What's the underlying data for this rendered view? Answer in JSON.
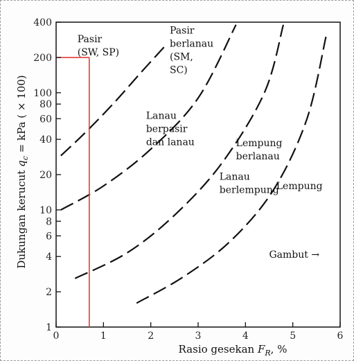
{
  "chart_data": {
    "type": "line",
    "xlabel": "Rasio gesekan F_R, %",
    "xlabel_main": "Rasio gesekan ",
    "xlabel_symbol": "F",
    "xlabel_sub": "R",
    "xlabel_tail": ", %",
    "ylabel": "Dukungan kerucut q_c = kPa ( × 100)",
    "ylabel_main": "Dukungan kerucut ",
    "ylabel_symbol": "q",
    "ylabel_sub": "c",
    "ylabel_tail": " = kPa ( × 100)",
    "xlim": [
      0,
      6
    ],
    "ylim": [
      1,
      400
    ],
    "yscale": "log",
    "grid": false,
    "x_ticks": [
      {
        "value": 0,
        "label": "0"
      },
      {
        "value": 1,
        "label": "1"
      },
      {
        "value": 2,
        "label": "2"
      },
      {
        "value": 3,
        "label": "3"
      },
      {
        "value": 4,
        "label": "4"
      },
      {
        "value": 5,
        "label": "5"
      },
      {
        "value": 6,
        "label": "6"
      }
    ],
    "y_ticks": [
      {
        "value": 1,
        "label": "1"
      },
      {
        "value": 2,
        "label": "2"
      },
      {
        "value": 4,
        "label": "4"
      },
      {
        "value": 6,
        "label": "6"
      },
      {
        "value": 8,
        "label": "8"
      },
      {
        "value": 10,
        "label": "10"
      },
      {
        "value": 20,
        "label": "20"
      },
      {
        "value": 40,
        "label": "40"
      },
      {
        "value": 60,
        "label": "60"
      },
      {
        "value": 80,
        "label": "80"
      },
      {
        "value": 100,
        "label": "100"
      },
      {
        "value": 200,
        "label": "200"
      },
      {
        "value": 400,
        "label": "400"
      }
    ],
    "series": [
      {
        "style": "dashed",
        "color": "#111111",
        "x": [
          0.1,
          0.6,
          1.2,
          1.8,
          2.3
        ],
        "y": [
          29,
          45,
          80,
          150,
          250
        ]
      },
      {
        "style": "dashed",
        "color": "#111111",
        "x": [
          0.1,
          1.0,
          2.0,
          3.0,
          3.8
        ],
        "y": [
          10,
          16,
          33,
          90,
          380
        ]
      },
      {
        "style": "dashed",
        "color": "#111111",
        "x": [
          0.4,
          1.5,
          2.5,
          3.5,
          4.4,
          4.8
        ],
        "y": [
          2.6,
          4.3,
          9,
          25,
          100,
          380
        ]
      },
      {
        "style": "dashed",
        "color": "#111111",
        "x": [
          1.7,
          2.7,
          3.7,
          4.6,
          5.3,
          5.7
        ],
        "y": [
          1.6,
          2.7,
          5.5,
          15,
          60,
          300
        ]
      }
    ],
    "reference_lines": {
      "color": "#e53935",
      "x_value": 0.7,
      "y_value": 200
    },
    "annotations": {
      "zones": [
        {
          "lines": [
            "Pasir",
            "(SW, SP)"
          ],
          "x": 0.45,
          "y": 270
        },
        {
          "lines": [
            "Pasir",
            "berlanau",
            "(SM,",
            "SC)"
          ],
          "x": 2.4,
          "y": 320
        },
        {
          "lines": [
            "Lanau",
            "berpasir",
            "dan lanau"
          ],
          "x": 1.9,
          "y": 60
        },
        {
          "lines": [
            "Lempung",
            "berlanau"
          ],
          "x": 3.8,
          "y": 35
        },
        {
          "lines": [
            "Lanau",
            "berlempung"
          ],
          "x": 3.45,
          "y": 18
        },
        {
          "lines": [
            "Lempung"
          ],
          "x": 4.65,
          "y": 15
        },
        {
          "lines": [
            "Gambut →"
          ],
          "x": 4.5,
          "y": 3.9
        }
      ]
    }
  }
}
